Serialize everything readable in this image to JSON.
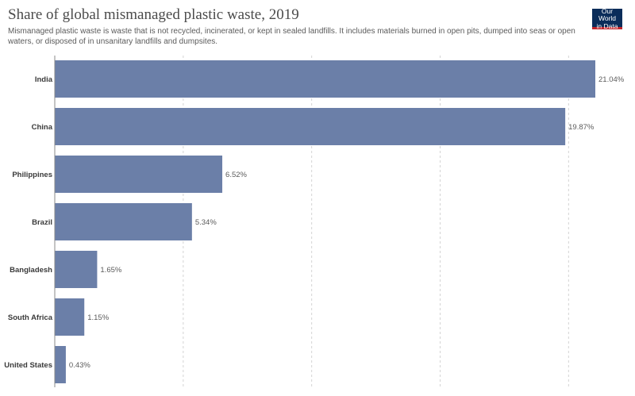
{
  "header": {
    "title": "Share of global mismanaged plastic waste, 2019",
    "subtitle": "Mismanaged plastic waste is waste that is not recycled, incinerated, or kept in sealed landfills. It includes materials burned in open pits, dumped into seas or open waters, or disposed of in unsanitary landfills and dumpsites.",
    "logo_line1": "Our World",
    "logo_line2": "in Data"
  },
  "colors": {
    "bar": "#6b7fa8",
    "logo_bg": "#0b2d5a",
    "logo_accent": "#c1272d"
  },
  "chart_data": {
    "type": "bar",
    "orientation": "horizontal",
    "title": "Share of global mismanaged plastic waste, 2019",
    "categories": [
      "India",
      "China",
      "Philippines",
      "Brazil",
      "Bangladesh",
      "South Africa",
      "United States"
    ],
    "values": [
      21.04,
      19.87,
      6.52,
      5.34,
      1.65,
      1.15,
      0.43
    ],
    "value_labels": [
      "21.04%",
      "19.87%",
      "6.52%",
      "5.34%",
      "1.65%",
      "1.15%",
      "0.43%"
    ],
    "unit": "%",
    "xlim": [
      0,
      21.04
    ],
    "gridlines": [
      0,
      5,
      10,
      15,
      20
    ],
    "grid": true,
    "legend": "none"
  }
}
